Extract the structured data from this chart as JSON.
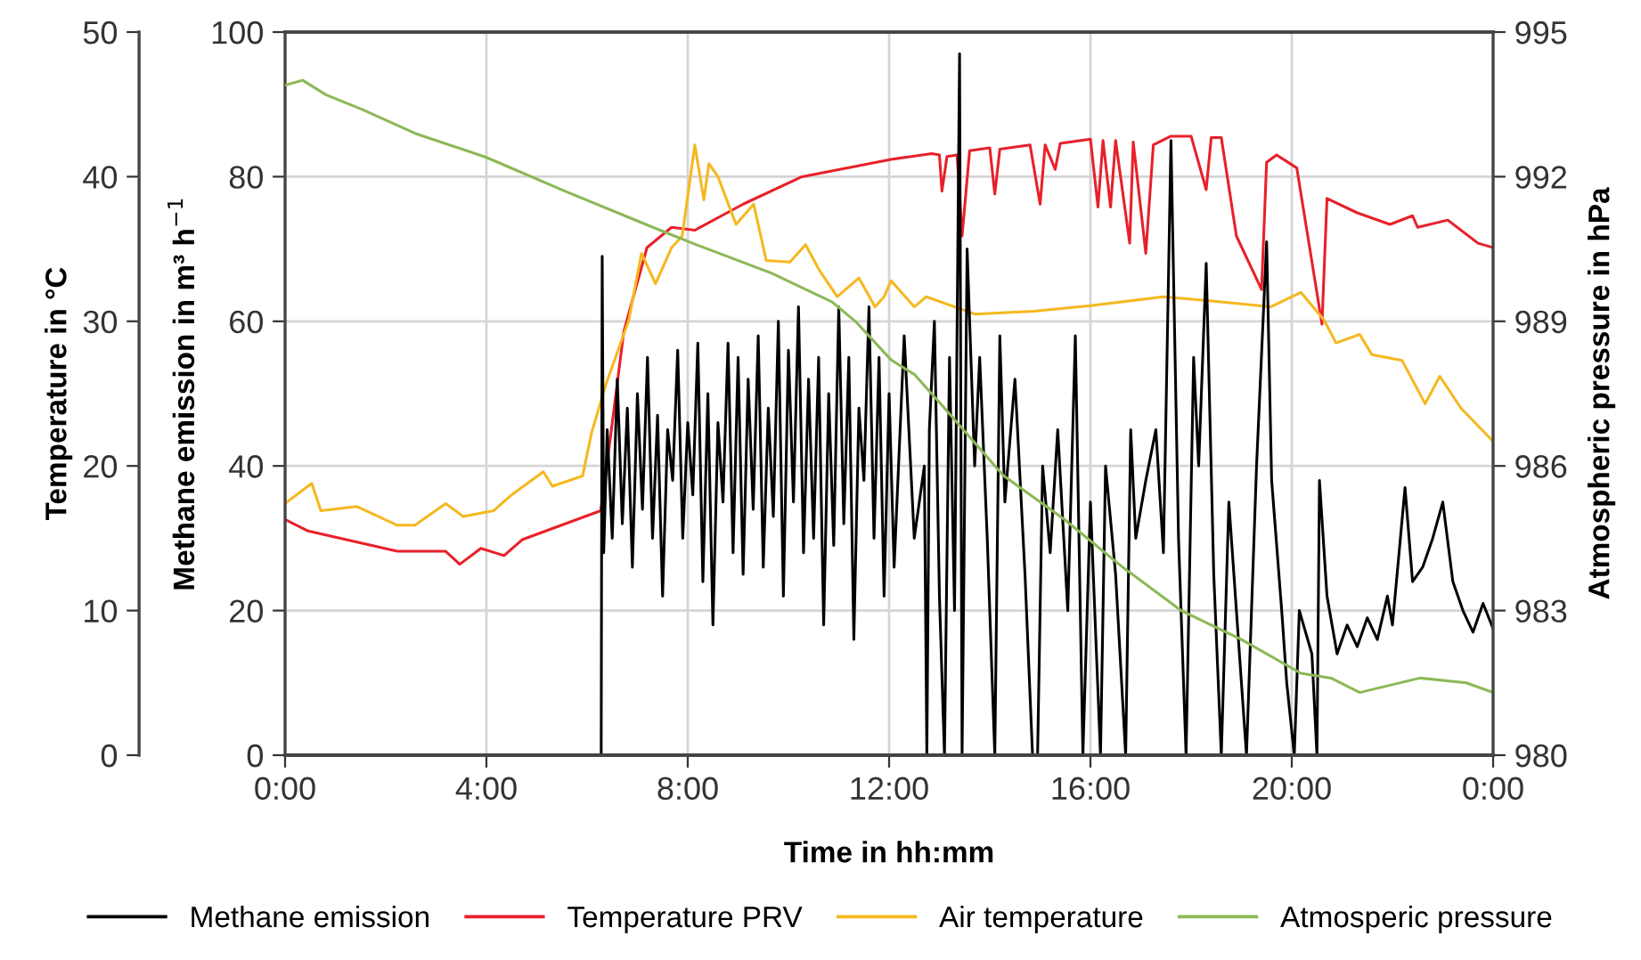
{
  "chart_data": {
    "type": "line",
    "xlabel": "Time in hh:mm",
    "ylabel": "Temperature in °C",
    "y2label": "Atmospheric pressure in hPa",
    "y3label": "Methane emission in m³ h$^{−1}$",
    "xlim": [
      0,
      24
    ],
    "xticks": [
      {
        "value": 0,
        "label": "0:00"
      },
      {
        "value": 4,
        "label": "4:00"
      },
      {
        "value": 8,
        "label": "8:00"
      },
      {
        "value": 12,
        "label": "12:00"
      },
      {
        "value": 16,
        "label": "16:00"
      },
      {
        "value": 20,
        "label": "20:00"
      },
      {
        "value": 24,
        "label": "0:00"
      }
    ],
    "ylim": [
      0,
      50
    ],
    "yticks": [
      0,
      10,
      20,
      30,
      40,
      50
    ],
    "y2lim": [
      980,
      995
    ],
    "y2ticks": [
      980,
      983,
      986,
      989,
      992,
      995
    ],
    "y3lim": [
      0,
      100
    ],
    "y3ticks": [
      0,
      20,
      40,
      60,
      80,
      100
    ],
    "grid": true,
    "legend": "bottom",
    "marker": "none",
    "line_style": "solid",
    "series": [
      {
        "name": "Methane emission",
        "color": "#000000",
        "axis": "y3",
        "x": [
          6.28,
          6.3,
          6.33,
          6.4,
          6.5,
          6.6,
          6.7,
          6.8,
          6.9,
          7.0,
          7.1,
          7.2,
          7.3,
          7.4,
          7.5,
          7.6,
          7.7,
          7.8,
          7.9,
          8.0,
          8.1,
          8.2,
          8.3,
          8.4,
          8.5,
          8.6,
          8.7,
          8.8,
          8.9,
          9.0,
          9.1,
          9.2,
          9.3,
          9.4,
          9.5,
          9.6,
          9.7,
          9.8,
          9.9,
          10.0,
          10.1,
          10.2,
          10.3,
          10.4,
          10.5,
          10.6,
          10.7,
          10.8,
          10.9,
          11.0,
          11.1,
          11.2,
          11.3,
          11.4,
          11.5,
          11.6,
          11.7,
          11.8,
          11.9,
          12.0,
          12.1,
          12.3,
          12.5,
          12.7,
          12.75,
          12.8,
          12.9,
          13.0,
          13.1,
          13.2,
          13.3,
          13.4,
          13.45,
          13.55,
          13.7,
          13.8,
          13.95,
          14.1,
          14.2,
          14.3,
          14.5,
          14.7,
          14.85,
          14.95,
          15.05,
          15.2,
          15.35,
          15.55,
          15.7,
          15.85,
          16.0,
          16.2,
          16.3,
          16.5,
          16.7,
          16.8,
          16.9,
          17.1,
          17.3,
          17.45,
          17.6,
          17.75,
          17.9,
          18.05,
          18.15,
          18.3,
          18.45,
          18.6,
          18.75,
          18.9,
          19.1,
          19.3,
          19.5,
          19.6,
          19.8,
          19.9,
          20.05,
          20.15,
          20.4,
          20.5,
          20.55,
          20.7,
          20.9,
          21.1,
          21.3,
          21.5,
          21.7,
          21.9,
          22.0,
          22.25,
          22.4,
          22.6,
          22.8,
          23.0,
          23.2,
          23.4,
          23.6,
          23.8,
          24.0
        ],
        "values": [
          0,
          69,
          28,
          45,
          30,
          52,
          32,
          48,
          26,
          50,
          34,
          55,
          30,
          47,
          22,
          45,
          38,
          56,
          30,
          46,
          36,
          57,
          24,
          50,
          18,
          46,
          35,
          57,
          28,
          55,
          25,
          52,
          34,
          58,
          26,
          48,
          33,
          60,
          22,
          56,
          35,
          62,
          28,
          52,
          30,
          55,
          18,
          50,
          29,
          62,
          32,
          55,
          16,
          48,
          38,
          62,
          30,
          55,
          22,
          50,
          26,
          58,
          30,
          40,
          0,
          45,
          60,
          22,
          0,
          55,
          20,
          97,
          0,
          70,
          40,
          55,
          30,
          0,
          58,
          35,
          52,
          25,
          0,
          0,
          40,
          28,
          45,
          20,
          58,
          0,
          35,
          0,
          40,
          25,
          0,
          45,
          30,
          38,
          45,
          28,
          85,
          30,
          0,
          55,
          40,
          68,
          25,
          0,
          35,
          20,
          0,
          40,
          71,
          38,
          20,
          10,
          0,
          20,
          14,
          0,
          38,
          22,
          14,
          18,
          15,
          19,
          16,
          22,
          18,
          37,
          24,
          26,
          30,
          35,
          24,
          20,
          17,
          21,
          17.5
        ]
      },
      {
        "name": "Temperature PRV",
        "color": "#e8202a",
        "axis": "y",
        "x": [
          0,
          0.46,
          2.23,
          3.19,
          3.47,
          3.89,
          4.35,
          4.71,
          6.27,
          6.37,
          6.73,
          7.19,
          7.68,
          8.14,
          9.1,
          10.27,
          12.04,
          12.85,
          13.0,
          13.05,
          13.15,
          13.35,
          13.45,
          13.6,
          14.0,
          14.1,
          14.2,
          14.8,
          15.0,
          15.1,
          15.3,
          15.4,
          16.0,
          16.15,
          16.25,
          16.4,
          16.5,
          16.78,
          16.85,
          17.1,
          17.25,
          17.6,
          18.0,
          18.3,
          18.4,
          18.6,
          18.9,
          19.4,
          19.5,
          19.7,
          20.1,
          20.6,
          20.7,
          21.3,
          21.95,
          22.4,
          22.5,
          23.1,
          23.7,
          24
        ],
        "values": [
          16.3,
          15.5,
          14.1,
          14.1,
          13.2,
          14.3,
          13.8,
          14.9,
          16.9,
          19.4,
          29.3,
          35.1,
          36.5,
          36.3,
          38.1,
          40.0,
          41.2,
          41.6,
          41.5,
          39.0,
          41.4,
          41.5,
          35.9,
          41.8,
          42.0,
          38.8,
          41.9,
          42.2,
          38.1,
          42.2,
          40.5,
          42.3,
          42.6,
          37.9,
          42.5,
          37.9,
          42.5,
          35.4,
          42.4,
          34.7,
          42.2,
          42.8,
          42.8,
          39.1,
          42.7,
          42.7,
          35.9,
          32.2,
          41.0,
          41.5,
          40.6,
          29.8,
          38.5,
          37.5,
          36.7,
          37.3,
          36.5,
          37.0,
          35.4,
          35.1
        ]
      },
      {
        "name": "Air temperature",
        "color": "#f5b820",
        "axis": "y",
        "x": [
          0,
          0.53,
          0.71,
          1.42,
          2.23,
          2.58,
          3.19,
          3.54,
          4.14,
          4.5,
          5.13,
          5.31,
          5.91,
          6.09,
          6.37,
          6.83,
          7.08,
          7.36,
          7.68,
          7.89,
          8.14,
          8.32,
          8.42,
          8.6,
          8.96,
          9.31,
          9.56,
          10.03,
          10.34,
          10.62,
          10.97,
          11.4,
          11.72,
          11.9,
          12.04,
          12.5,
          12.74,
          13.7,
          14.87,
          16.04,
          17.45,
          18.41,
          19.58,
          20.18,
          20.64,
          20.88,
          21.35,
          21.59,
          22.19,
          22.65,
          22.94,
          23.36,
          24
        ],
        "values": [
          17.4,
          18.8,
          16.9,
          17.2,
          15.9,
          15.9,
          17.4,
          16.5,
          16.9,
          18.0,
          19.6,
          18.6,
          19.3,
          22.3,
          25.6,
          30.1,
          34.7,
          32.6,
          35.1,
          35.9,
          42.2,
          38.4,
          40.9,
          40.0,
          36.7,
          38.1,
          34.2,
          34.1,
          35.3,
          33.5,
          31.7,
          33.0,
          31.0,
          31.7,
          32.8,
          31.0,
          31.7,
          30.5,
          30.7,
          31.1,
          31.7,
          31.4,
          31.0,
          32.0,
          30.1,
          28.5,
          29.1,
          27.7,
          27.3,
          24.3,
          26.2,
          24.0,
          21.7
        ]
      },
      {
        "name": "Atmosperic pressure",
        "color": "#8db857",
        "axis": "y2",
        "x": [
          0,
          0.35,
          0.81,
          1.52,
          2.58,
          4.0,
          5.56,
          7.19,
          8.14,
          9.66,
          10.87,
          11.33,
          12.04,
          12.5,
          13.1,
          14.27,
          15.47,
          16.64,
          17.8,
          19.0,
          20.18,
          20.78,
          21.35,
          22.55,
          23.47,
          24
        ],
        "values": [
          993.9,
          994.0,
          993.7,
          993.4,
          992.9,
          992.4,
          991.7,
          991.0,
          990.6,
          990.0,
          989.4,
          989.0,
          988.2,
          987.9,
          987.2,
          985.8,
          984.9,
          983.9,
          983.0,
          982.4,
          981.7,
          981.6,
          981.3,
          981.6,
          981.5,
          981.3
        ]
      }
    ]
  }
}
